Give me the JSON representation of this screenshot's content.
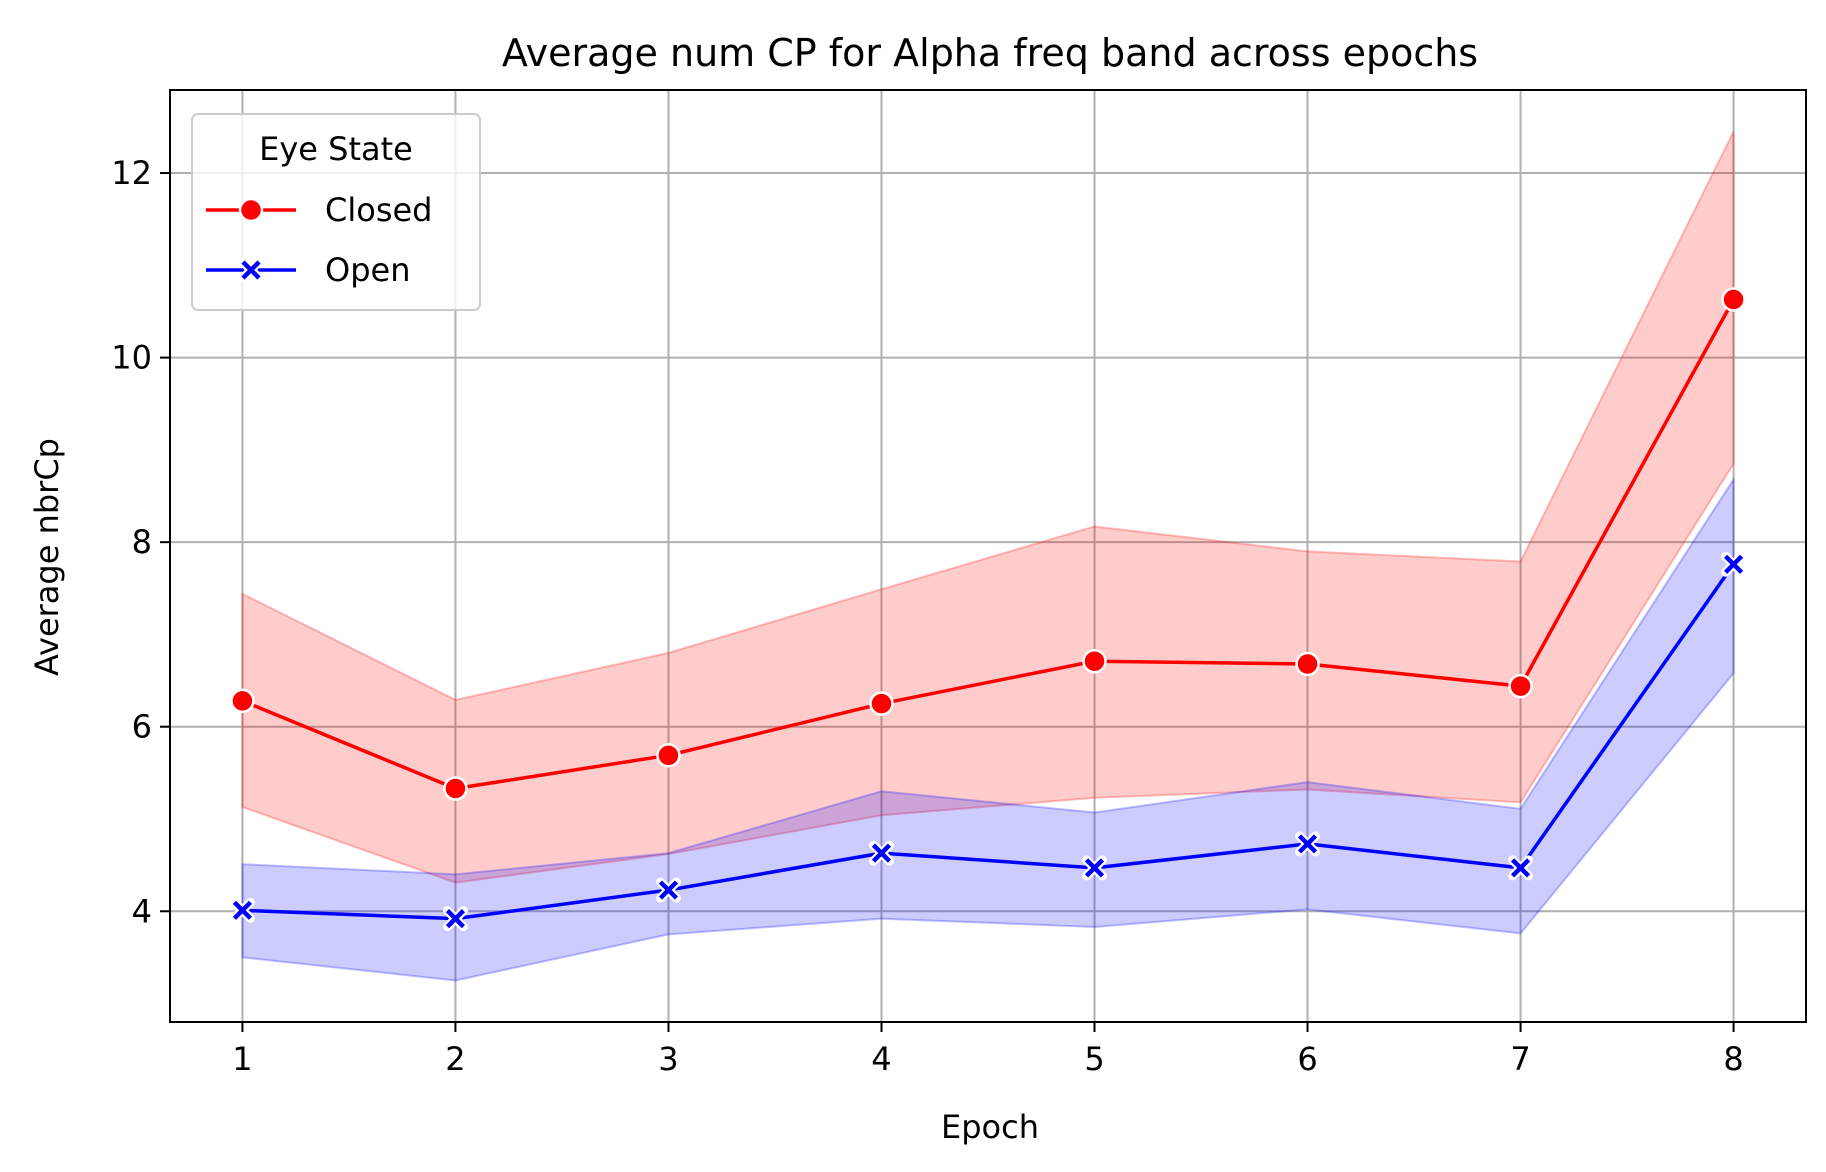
{
  "chart_data": {
    "type": "line",
    "title": "Average num CP for Alpha freq band across epochs",
    "xlabel": "Epoch",
    "ylabel": "Average nbrCp",
    "x": [
      1,
      2,
      3,
      4,
      5,
      6,
      7,
      8
    ],
    "xlim": [
      0.66,
      8.34
    ],
    "ylim": [
      2.8,
      12.9
    ],
    "xticks": [
      "1",
      "2",
      "3",
      "4",
      "5",
      "6",
      "7",
      "8"
    ],
    "yticks": [
      4,
      6,
      8,
      10,
      12
    ],
    "grid": true,
    "legend": {
      "title": "Eye State",
      "placement": "top-left"
    },
    "series": [
      {
        "name": "Closed",
        "color": "#ff0000",
        "marker": "circle",
        "values": [
          6.28,
          5.33,
          5.69,
          6.25,
          6.71,
          6.68,
          6.44,
          10.63
        ],
        "ci_lower": [
          5.13,
          4.31,
          4.62,
          5.04,
          5.23,
          5.32,
          5.18,
          8.85
        ],
        "ci_upper": [
          7.44,
          6.29,
          6.8,
          7.49,
          8.17,
          7.9,
          7.79,
          12.45
        ]
      },
      {
        "name": "Open",
        "color": "#0000ff",
        "marker": "x",
        "values": [
          4.01,
          3.92,
          4.23,
          4.63,
          4.47,
          4.73,
          4.47,
          7.76
        ],
        "ci_lower": [
          3.5,
          3.25,
          3.75,
          3.92,
          3.83,
          4.02,
          3.76,
          6.58
        ],
        "ci_upper": [
          4.51,
          4.4,
          4.63,
          5.3,
          5.07,
          5.4,
          5.11,
          8.68
        ]
      }
    ]
  }
}
